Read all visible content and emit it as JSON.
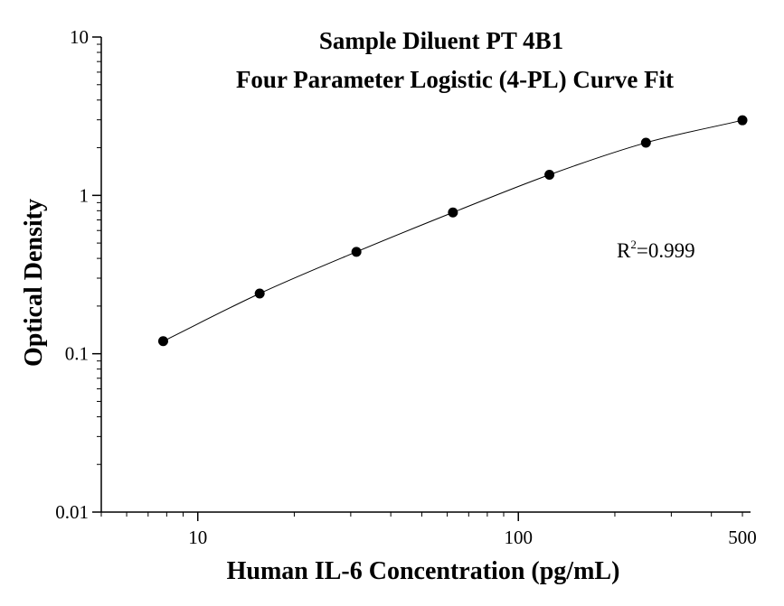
{
  "chart_data": {
    "type": "scatter",
    "title": "Sample Diluent PT 4B1",
    "subtitle": "Four Parameter Logistic (4-PL) Curve Fit",
    "xlabel": "Human IL-6 Concentration (pg/mL)",
    "ylabel": "Optical Density",
    "x_scale": "log",
    "y_scale": "log",
    "xlim": [
      5,
      530
    ],
    "ylim": [
      0.01,
      10
    ],
    "x_ticks": [
      10,
      100,
      500
    ],
    "x_tick_labels": [
      "10",
      "100",
      "500"
    ],
    "y_ticks": [
      0.01,
      0.1,
      1,
      10
    ],
    "y_tick_labels": [
      "0.01",
      "0.1",
      "1",
      "10"
    ],
    "grid": false,
    "series": [
      {
        "x": [
          7.8,
          15.6,
          31.25,
          62.5,
          125,
          250,
          500
        ],
        "y": [
          0.12,
          0.24,
          0.44,
          0.78,
          1.35,
          2.15,
          2.98
        ],
        "marker": "circle",
        "color": "#000000"
      }
    ],
    "fit_curve": {
      "model": "4-PL",
      "color": "#000000"
    },
    "annotation": {
      "base": "R",
      "sup": "2",
      "value": "=0.999"
    }
  }
}
